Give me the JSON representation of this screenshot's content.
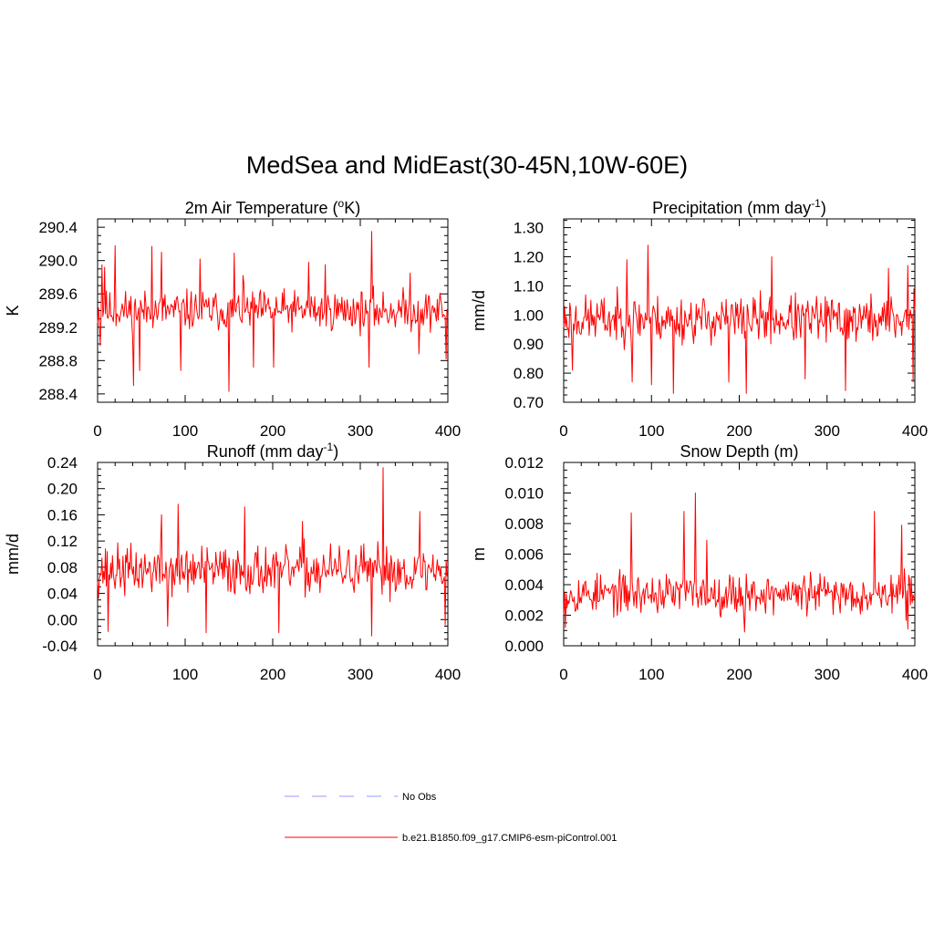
{
  "figure": {
    "title": "MedSea and MidEast(30-45N,10W-60E)"
  },
  "legend": {
    "items": [
      {
        "label": "No Obs",
        "color": "#9999ff",
        "style": "dashed"
      },
      {
        "label": "b.e21.B1850.f09_g17.CMIP6-esm-piControl.001",
        "color": "#ff0000",
        "style": "solid"
      }
    ]
  },
  "chart_data": [
    {
      "type": "line",
      "title_main": "2m Air Temperature (",
      "title_sup": "o",
      "title_end": "K)",
      "sup_before": true,
      "ylabel": "K",
      "xlim": [
        0,
        400
      ],
      "ylim": [
        288.3,
        290.5
      ],
      "xticks": [
        0,
        100,
        200,
        300,
        400
      ],
      "xtick_labels": [
        "0",
        "100",
        "200",
        "300",
        "400"
      ],
      "yticks": [
        288.4,
        288.8,
        289.2,
        289.6,
        290.0,
        290.4
      ],
      "ytick_labels": [
        "288.4",
        "288.8",
        "289.2",
        "289.6",
        "290.0",
        "290.4"
      ],
      "series": [
        {
          "name": "b.e21.B1850.f09_g17.CMIP6-esm-piControl.001",
          "color": "#ff0000",
          "mean": 289.4,
          "amp": 0.22,
          "seed": 11,
          "spikes": [
            [
              3,
              288.98
            ],
            [
              5,
              289.95
            ],
            [
              8,
              289.92
            ],
            [
              20,
              290.18
            ],
            [
              41,
              288.5
            ],
            [
              48,
              288.68
            ],
            [
              62,
              290.17
            ],
            [
              73,
              290.1
            ],
            [
              95,
              288.68
            ],
            [
              117,
              290.02
            ],
            [
              150,
              288.43
            ],
            [
              156,
              290.09
            ],
            [
              166,
              289.82
            ],
            [
              178,
              288.72
            ],
            [
              201,
              288.72
            ],
            [
              241,
              289.98
            ],
            [
              260,
              289.95
            ],
            [
              310,
              288.72
            ],
            [
              313,
              290.35
            ],
            [
              357,
              289.85
            ],
            [
              367,
              288.88
            ],
            [
              398,
              288.82
            ]
          ]
        }
      ]
    },
    {
      "type": "line",
      "title_main": "Precipitation (mm day",
      "title_sup": "-1",
      "title_end": ")",
      "sup_before": false,
      "ylabel": "mm/d",
      "xlim": [
        0,
        400
      ],
      "ylim": [
        0.7,
        1.33
      ],
      "xticks": [
        0,
        100,
        200,
        300,
        400
      ],
      "xtick_labels": [
        "0",
        "100",
        "200",
        "300",
        "400"
      ],
      "yticks": [
        0.7,
        0.8,
        0.9,
        1.0,
        1.1,
        1.2,
        1.3
      ],
      "ytick_labels": [
        "0.70",
        "0.80",
        "0.90",
        "1.00",
        "1.10",
        "1.20",
        "1.30"
      ],
      "series": [
        {
          "name": "b.e21.B1850.f09_g17.CMIP6-esm-piControl.001",
          "color": "#ff0000",
          "mean": 0.985,
          "amp": 0.075,
          "seed": 23,
          "spikes": [
            [
              10,
              0.81
            ],
            [
              72,
              1.19
            ],
            [
              78,
              0.77
            ],
            [
              96,
              1.24
            ],
            [
              100,
              0.76
            ],
            [
              125,
              0.73
            ],
            [
              188,
              0.77
            ],
            [
              208,
              0.73
            ],
            [
              237,
              1.2
            ],
            [
              275,
              0.78
            ],
            [
              321,
              0.74
            ],
            [
              370,
              1.16
            ],
            [
              392,
              1.17
            ],
            [
              398,
              0.77
            ],
            [
              399,
              1.09
            ]
          ]
        }
      ]
    },
    {
      "type": "line",
      "title_main": "Runoff (mm day",
      "title_sup": "-1",
      "title_end": ")",
      "sup_before": false,
      "ylabel": "mm/d",
      "xlim": [
        0,
        400
      ],
      "ylim": [
        -0.04,
        0.24
      ],
      "xticks": [
        0,
        100,
        200,
        300,
        400
      ],
      "xtick_labels": [
        "0",
        "100",
        "200",
        "300",
        "400"
      ],
      "yticks": [
        -0.04,
        0.0,
        0.04,
        0.08,
        0.12,
        0.16,
        0.2,
        0.24
      ],
      "ytick_labels": [
        "-0.04",
        "0.00",
        "0.04",
        "0.08",
        "0.12",
        "0.16",
        "0.20",
        "0.24"
      ],
      "series": [
        {
          "name": "b.e21.B1850.f09_g17.CMIP6-esm-piControl.001",
          "color": "#ff0000",
          "mean": 0.075,
          "amp": 0.035,
          "seed": 37,
          "spikes": [
            [
              12,
              -0.018
            ],
            [
              73,
              0.16
            ],
            [
              80,
              -0.01
            ],
            [
              92,
              0.176
            ],
            [
              124,
              -0.02
            ],
            [
              168,
              0.172
            ],
            [
              207,
              -0.02
            ],
            [
              234,
              0.15
            ],
            [
              313,
              -0.025
            ],
            [
              326,
              0.232
            ],
            [
              368,
              0.165
            ],
            [
              397,
              -0.008
            ]
          ]
        }
      ]
    },
    {
      "type": "line",
      "title_main": "Snow Depth (m)",
      "title_sup": "",
      "title_end": "",
      "sup_before": false,
      "ylabel": "m",
      "xlim": [
        0,
        400
      ],
      "ylim": [
        0.0,
        0.012
      ],
      "xticks": [
        0,
        100,
        200,
        300,
        400
      ],
      "xtick_labels": [
        "0",
        "100",
        "200",
        "300",
        "400"
      ],
      "yticks": [
        0.0,
        0.002,
        0.004,
        0.006,
        0.008,
        0.01,
        0.012
      ],
      "ytick_labels": [
        "0.000",
        "0.002",
        "0.004",
        "0.006",
        "0.008",
        "0.010",
        "0.012"
      ],
      "series": [
        {
          "name": "b.e21.B1850.f09_g17.CMIP6-esm-piControl.001",
          "color": "#ff0000",
          "mean": 0.0034,
          "amp": 0.0012,
          "seed": 53,
          "spikes": [
            [
              2,
              0.0012
            ],
            [
              77,
              0.0087
            ],
            [
              137,
              0.0088
            ],
            [
              150,
              0.01
            ],
            [
              163,
              0.0069
            ],
            [
              206,
              0.0009
            ],
            [
              354,
              0.0088
            ],
            [
              385,
              0.0079
            ],
            [
              392,
              0.0011
            ]
          ]
        }
      ]
    }
  ]
}
